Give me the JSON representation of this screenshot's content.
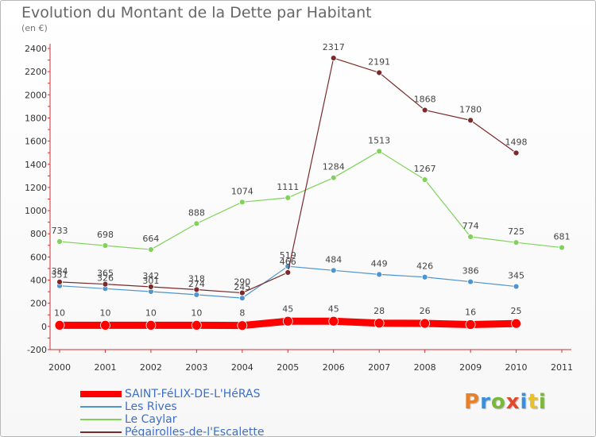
{
  "header": {
    "title": "Evolution du Montant de la Dette par Habitant",
    "subtitle": "(en €)"
  },
  "logo": {
    "text": "Proxiti",
    "colors": [
      "#e8802a",
      "#3a8fd8",
      "#7ab83a",
      "#e04a2a",
      "#3a8fd8",
      "#e8c02a",
      "#7ab83a"
    ]
  },
  "chart_data": {
    "type": "line",
    "title": "Evolution du Montant de la Dette par Habitant",
    "subtitle": "(en €)",
    "xlabel": "",
    "ylabel": "",
    "categories": [
      "2000",
      "2001",
      "2002",
      "2003",
      "2004",
      "2005",
      "2006",
      "2007",
      "2008",
      "2009",
      "2010",
      "2011"
    ],
    "ylim": [
      -200,
      2400
    ],
    "yticks": [
      -200,
      0,
      200,
      400,
      600,
      800,
      1000,
      1200,
      1400,
      1600,
      1800,
      2000,
      2200,
      2400
    ],
    "grid": false,
    "legend_position": "bottom-left",
    "series": [
      {
        "name": "SAINT-FéLIX-DE-L'HéRAS",
        "color": "#ff0000",
        "values": [
          10,
          10,
          10,
          10,
          8,
          45,
          45,
          28,
          26,
          16,
          25,
          null
        ]
      },
      {
        "name": "Les Rives",
        "color": "#4f94cd",
        "values": [
          351,
          326,
          301,
          274,
          245,
          519,
          484,
          449,
          426,
          386,
          345,
          null
        ]
      },
      {
        "name": "Le Caylar",
        "color": "#80d25a",
        "values": [
          733,
          698,
          664,
          888,
          1074,
          1111,
          1284,
          1513,
          1267,
          774,
          725,
          681
        ]
      },
      {
        "name": "Pégairolles-de-l'Escalette",
        "color": "#7a2a2a",
        "values": [
          384,
          365,
          342,
          318,
          290,
          466,
          2317,
          2191,
          1868,
          1780,
          1498,
          null
        ]
      }
    ]
  }
}
